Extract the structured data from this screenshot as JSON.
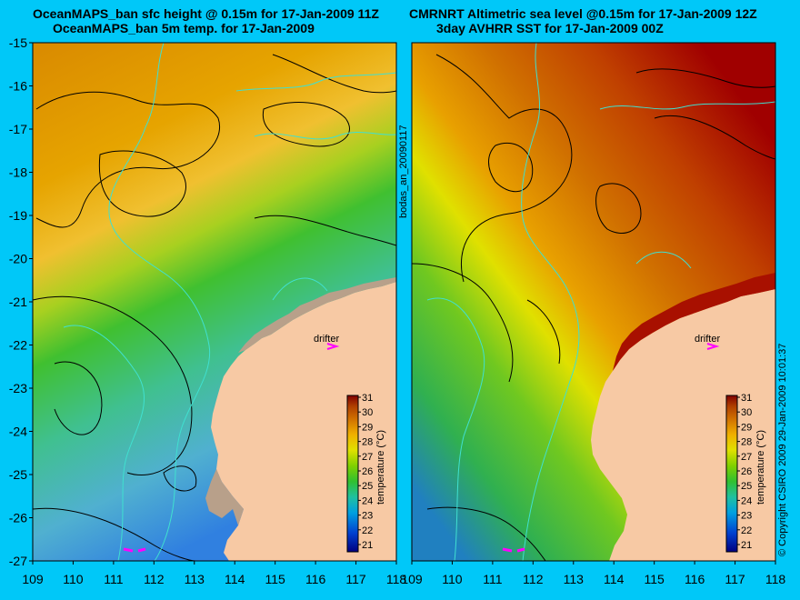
{
  "titles": {
    "left_line1": "OceanMAPS_ban sfc height @ 0.15m for 17-Jan-2009 11Z",
    "left_line2": "OceanMAPS_ban 5m temp. for 17-Jan-2009",
    "right_line1": "CMRNRT Altimetric sea level  @0.15m  for 17-Jan-2009 12Z",
    "right_line2": "3day AVHRR SST for 17-Jan-2009 00Z"
  },
  "side_labels": {
    "middle": "bodas_an_20090117",
    "right": "© Copyright CSIRO 2009   29-Jan-2009 10:01:37"
  },
  "axes": {
    "x_ticks": [
      "109",
      "110",
      "111",
      "112",
      "113",
      "114",
      "115",
      "116",
      "117",
      "118"
    ],
    "y_ticks": [
      "-15",
      "-16",
      "-17",
      "-18",
      "-19",
      "-20",
      "-21",
      "-22",
      "-23",
      "-24",
      "-25",
      "-26",
      "-27"
    ],
    "lon_range": [
      109,
      118
    ],
    "lat_range": [
      -27,
      -15
    ]
  },
  "colorbar": {
    "label": "temperature (°C)",
    "ticks": [
      "31",
      "30",
      "29",
      "28",
      "27",
      "26",
      "25",
      "24",
      "23",
      "22",
      "21"
    ]
  },
  "drifter": {
    "label": "drifter",
    "lon": 116.6,
    "lat": -21.9
  },
  "colors": {
    "background": "#00c8f8",
    "land": "#f7c9a4",
    "contour_ssh": "#000000",
    "contour_bathy": "#40e0d0",
    "drifter": "#ff00ff",
    "reef": "#b8a08a"
  }
}
